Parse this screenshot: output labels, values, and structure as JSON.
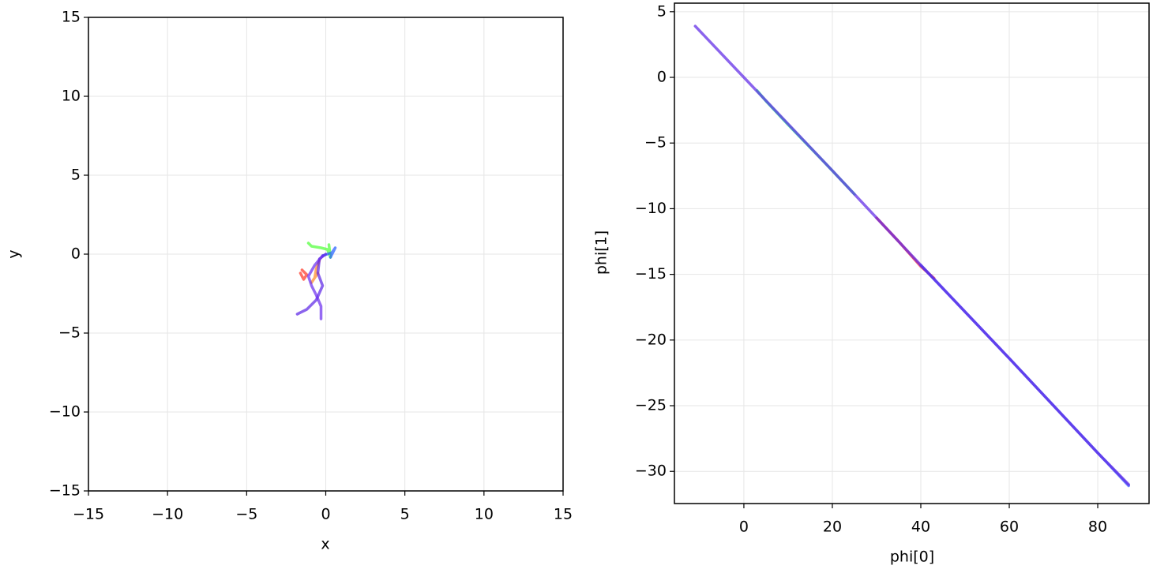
{
  "chart_data": [
    {
      "type": "line",
      "xlabel": "x",
      "ylabel": "y",
      "xlim": [
        -15,
        15
      ],
      "ylim": [
        -15,
        15
      ],
      "grid": true,
      "xticks": [
        {
          "value": -15,
          "label": "−15"
        },
        {
          "value": -10,
          "label": "−10"
        },
        {
          "value": -5,
          "label": "−5"
        },
        0,
        5,
        10,
        15
      ],
      "yticks": [
        {
          "value": -15,
          "label": "−15"
        },
        {
          "value": -10,
          "label": "−10"
        },
        {
          "value": -5,
          "label": "−5"
        },
        0,
        5,
        10,
        15
      ],
      "series": [
        {
          "color": "#4cff33",
          "x": [
            -1.1,
            -0.9,
            -0.3,
            0.1,
            0.3,
            0.2
          ],
          "values": [
            0.7,
            0.5,
            0.4,
            0.3,
            -0.2,
            0.6
          ]
        },
        {
          "color": "#ff3322",
          "x": [
            -1.6,
            -1.4,
            -1.2,
            -1.5
          ],
          "values": [
            -1.2,
            -1.6,
            -1.3,
            -1.0
          ]
        },
        {
          "color": "#ff8822",
          "x": [
            -0.4,
            -0.6,
            -0.7,
            -0.9,
            -0.5
          ],
          "values": [
            -0.4,
            -0.9,
            -1.5,
            -1.8,
            -1.2
          ]
        },
        {
          "color": "#1f5cff",
          "x": [
            -0.2,
            0.1,
            0.4,
            0.6,
            0.3
          ],
          "values": [
            -0.1,
            0.0,
            0.1,
            0.4,
            -0.2
          ]
        },
        {
          "color": "#5a22e6",
          "x": [
            -1.8,
            -1.2,
            -0.6,
            -0.2,
            -0.5,
            -0.4,
            0
          ],
          "values": [
            -3.8,
            -3.5,
            -2.9,
            -2.0,
            -1.2,
            -0.3,
            0
          ]
        },
        {
          "color": "#6a2bee",
          "x": [
            -0.3,
            -0.3,
            -0.6,
            -0.9,
            -1.1,
            -0.7,
            -0.2
          ],
          "values": [
            -4.1,
            -3.3,
            -2.6,
            -2.0,
            -1.4,
            -0.7,
            -0.1
          ]
        }
      ]
    },
    {
      "type": "line",
      "xlabel": "phi[0]",
      "ylabel": "phi[1]",
      "xlim": [
        -15.7,
        91.6
      ],
      "ylim": [
        -32.45,
        5.65
      ],
      "grid": true,
      "xticks": [
        0,
        20,
        40,
        60,
        80
      ],
      "yticks": [
        {
          "value": -30,
          "label": "−30"
        },
        {
          "value": -25,
          "label": "−25"
        },
        {
          "value": -20,
          "label": "−20"
        },
        {
          "value": -15,
          "label": "−15"
        },
        {
          "value": -10,
          "label": "−10"
        },
        {
          "value": -5,
          "label": "−5"
        },
        0,
        5
      ],
      "series": [
        {
          "color": "#22ee88",
          "x": [
            3,
            5,
            10,
            18,
            25
          ],
          "values": [
            -1.0,
            -1.8,
            -3.6,
            -6.4,
            -8.9
          ]
        },
        {
          "color": "#ff2233",
          "x": [
            30,
            35,
            40,
            43
          ],
          "values": [
            -10.7,
            -12.5,
            -14.4,
            -15.3
          ]
        },
        {
          "color": "#3355ff",
          "x": [
            40,
            60,
            87
          ],
          "values": [
            -14.3,
            -21.4,
            -31.1
          ]
        },
        {
          "color": "#5a22e6",
          "x": [
            -11,
            0,
            20,
            40,
            60,
            80,
            87
          ],
          "values": [
            3.9,
            0,
            -7.1,
            -14.3,
            -21.4,
            -28.6,
            -31
          ]
        }
      ]
    }
  ]
}
